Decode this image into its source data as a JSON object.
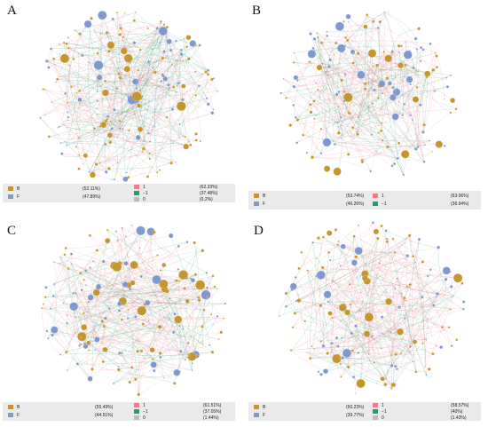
{
  "colors": {
    "B": "#c5962d",
    "F": "#7f99cf",
    "edge_pos": "#ef7c8f",
    "edge_neg": "#1f9f72",
    "edge_zero": "#bcbcbc"
  },
  "panels": [
    {
      "letter": "A",
      "legend": {
        "nodes": [
          {
            "label": "B",
            "pct": "(52.11%)"
          },
          {
            "label": "F",
            "pct": "(47.89%)"
          }
        ],
        "edges": [
          {
            "label": "1",
            "pct": "(62.33%)"
          },
          {
            "label": "−1",
            "pct": "(37.48%)"
          },
          {
            "label": "0",
            "pct": "(0.2%)"
          }
        ]
      }
    },
    {
      "letter": "B",
      "legend": {
        "nodes": [
          {
            "label": "B",
            "pct": "(53.74%)"
          },
          {
            "label": "F",
            "pct": "(46.26%)"
          }
        ],
        "edges": [
          {
            "label": "1",
            "pct": "(63.06%)"
          },
          {
            "label": "−1",
            "pct": "(36.94%)"
          }
        ]
      }
    },
    {
      "letter": "C",
      "legend": {
        "nodes": [
          {
            "label": "B",
            "pct": "(55.49%)"
          },
          {
            "label": "F",
            "pct": "(44.51%)"
          }
        ],
        "edges": [
          {
            "label": "1",
            "pct": "(61.51%)"
          },
          {
            "label": "−1",
            "pct": "(37.05%)"
          },
          {
            "label": "0",
            "pct": "(1.44%)"
          }
        ]
      }
    },
    {
      "letter": "D",
      "legend": {
        "nodes": [
          {
            "label": "B",
            "pct": "(60.23%)"
          },
          {
            "label": "F",
            "pct": "(39.77%)"
          }
        ],
        "edges": [
          {
            "label": "1",
            "pct": "(58.57%)"
          },
          {
            "label": "−1",
            "pct": "(40%)"
          },
          {
            "label": "0",
            "pct": "(1.43%)"
          }
        ]
      }
    }
  ]
}
